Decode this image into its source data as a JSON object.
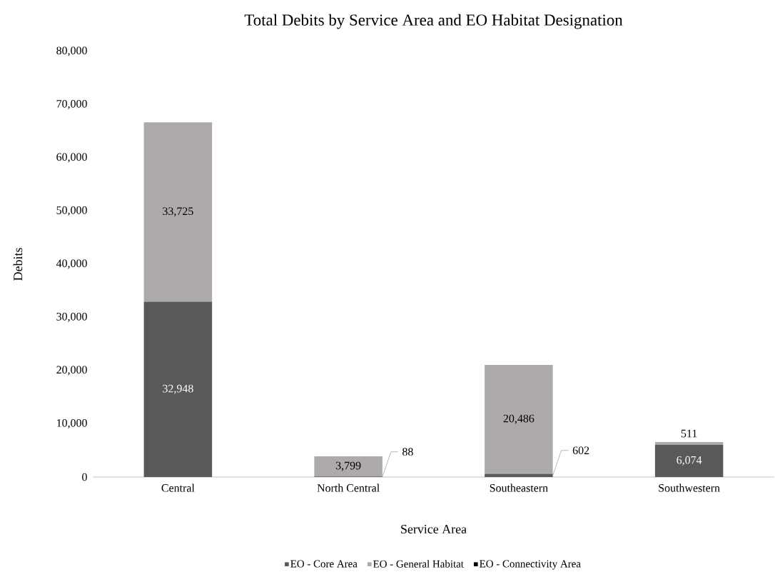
{
  "chart_data": {
    "type": "bar",
    "title": "Total Debits by Service Area and EO Habitat Designation",
    "xlabel": "Service Area",
    "ylabel": "Debits",
    "categories": [
      "Central",
      "North Central",
      "Southeastern",
      "Southwestern"
    ],
    "stacked": true,
    "series": [
      {
        "name": "EO - Core Area",
        "color": "#595959",
        "values": [
          32948,
          88,
          602,
          6074
        ],
        "value_labels": [
          "32,948",
          "88",
          "602",
          "6,074"
        ]
      },
      {
        "name": "EO - General Habitat",
        "color": "#aeaaaa",
        "values": [
          33725,
          3799,
          20486,
          511
        ],
        "value_labels": [
          "33,725",
          "3,799",
          "20,486",
          "511"
        ]
      },
      {
        "name": "EO - Connectivity Area",
        "color": "#000000",
        "values": [
          null,
          null,
          null,
          null
        ]
      }
    ],
    "ylim": [
      0,
      80000
    ],
    "yticks": [
      0,
      {
        "value": 10000,
        "label": "10,000"
      },
      {
        "value": 20000,
        "label": "20,000"
      },
      {
        "value": 30000,
        "label": "30,000"
      },
      {
        "value": 40000,
        "label": "40,000"
      },
      {
        "value": 50000,
        "label": "50,000"
      },
      {
        "value": 60000,
        "label": "60,000"
      },
      {
        "value": 70000,
        "label": "70,000"
      },
      {
        "value": 80000,
        "label": "80,000"
      }
    ],
    "grid": false,
    "legend": "bottom"
  }
}
